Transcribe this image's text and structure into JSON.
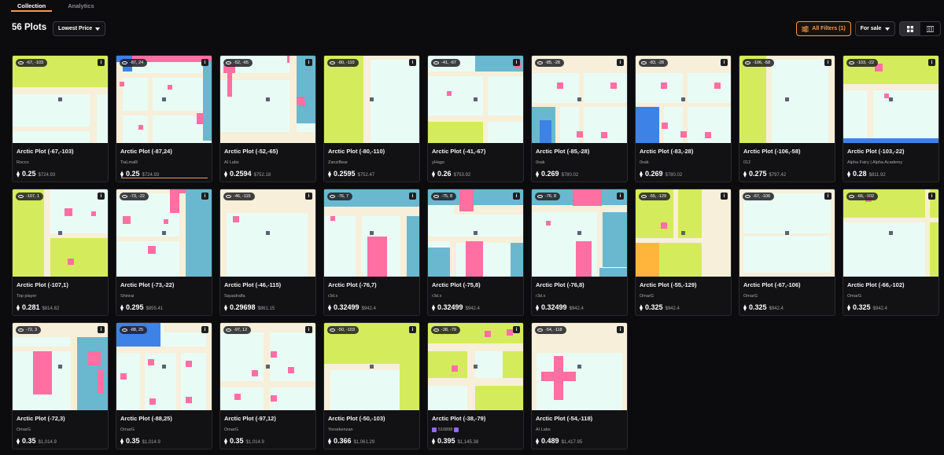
{
  "tabs": [
    {
      "label": "Collection"
    },
    {
      "label": "Analytics"
    }
  ],
  "toolbar": {
    "count": "56 Plots",
    "sort_label": "Lowest Price",
    "filters_label": "All Filters (1)",
    "forsale_label": "For sale"
  },
  "colors": {
    "accent": "#f59a4b",
    "park": "#d4ec5c",
    "road": "#f7efd9",
    "water": "#6ab8cf",
    "house": "#ff6fa2",
    "plaza": "#e8fcf5",
    "blue": "#3d82e6",
    "orange": "#ffb53c"
  },
  "plots": [
    {
      "coord": "-67, -103",
      "name": "Arctic Plot (-67,-103)",
      "owner": "Rocco",
      "price": "0.25",
      "usd": "$724.93"
    },
    {
      "coord": "-87, 24",
      "name": "Arctic Plot (-87,24)",
      "owner": "TiaLmaR",
      "price": "0.25",
      "usd": "$724.93"
    },
    {
      "coord": "-52, -65",
      "name": "Arctic Plot (-52,-65)",
      "owner": "AI Labs",
      "price": "0.2594",
      "usd": "$752.18"
    },
    {
      "coord": "-80, -110",
      "name": "Arctic Plot (-80,-110)",
      "owner": "ZanziBear",
      "price": "0.2595",
      "usd": "$752.47"
    },
    {
      "coord": "-41, -67",
      "name": "Arctic Plot (-41,-67)",
      "owner": "yHago",
      "price": "0.26",
      "usd": "$753.92"
    },
    {
      "coord": "-85, -28",
      "name": "Arctic Plot (-85,-28)",
      "owner": "0xak",
      "price": "0.269",
      "usd": "$780.02"
    },
    {
      "coord": "-83, -28",
      "name": "Arctic Plot (-83,-28)",
      "owner": "0xak",
      "price": "0.269",
      "usd": "$780.02"
    },
    {
      "coord": "-106, -58",
      "name": "Arctic Plot (-106,-58)",
      "owner": "012",
      "price": "0.275",
      "usd": "$797.42"
    },
    {
      "coord": "-103, -22",
      "name": "Arctic Plot (-103,-22)",
      "owner": "Alpha Fairy | Alpha Academy",
      "price": "0.28",
      "usd": "$811.92"
    },
    {
      "coord": "-107, 1",
      "name": "Arctic Plot (-107,1)",
      "owner": "Top player",
      "price": "0.281",
      "usd": "$814.82"
    },
    {
      "coord": "-73, -22",
      "name": "Arctic Plot (-73,-22)",
      "owner": "Shinrai",
      "price": "0.295",
      "usd": "$855.41"
    },
    {
      "coord": "-46, -115",
      "name": "Arctic Plot (-46,-115)",
      "owner": "Squadralfa",
      "price": "0.29698",
      "usd": "$861.15"
    },
    {
      "coord": "-76, 7",
      "name": "Arctic Plot (-76,7)",
      "owner": "r3d.x",
      "price": "0.32499",
      "usd": "$942.4"
    },
    {
      "coord": "-75, 8",
      "name": "Arctic Plot (-75,8)",
      "owner": "r3d.x",
      "price": "0.32499",
      "usd": "$942.4"
    },
    {
      "coord": "-76, 8",
      "name": "Arctic Plot (-76,8)",
      "owner": "r3d.x",
      "price": "0.32499",
      "usd": "$942.4"
    },
    {
      "coord": "-55, -129",
      "name": "Arctic Plot (-55,-129)",
      "owner": "OmarG",
      "price": "0.325",
      "usd": "$942.4"
    },
    {
      "coord": "-67, -106",
      "name": "Arctic Plot (-67,-106)",
      "owner": "OmarG",
      "price": "0.325",
      "usd": "$942.4"
    },
    {
      "coord": "-66, -102",
      "name": "Arctic Plot (-66,-102)",
      "owner": "OmarG",
      "price": "0.325",
      "usd": "$942.4"
    },
    {
      "coord": "-72, 3",
      "name": "Arctic Plot (-72,3)",
      "owner": "OmarG",
      "price": "0.35",
      "usd": "$1,014.9"
    },
    {
      "coord": "-88, 25",
      "name": "Arctic Plot (-88,25)",
      "owner": "OmarG",
      "price": "0.35",
      "usd": "$1,014.9"
    },
    {
      "coord": "-97, 12",
      "name": "Arctic Plot (-97,12)",
      "owner": "OmarG",
      "price": "0.35",
      "usd": "$1,014.9"
    },
    {
      "coord": "-50, -103",
      "name": "Arctic Plot (-50,-103)",
      "owner": "Yorsekenzan",
      "price": "0.366",
      "usd": "$1,061.29"
    },
    {
      "coord": "-38, -79",
      "name": "Arctic Plot (-38,-79)",
      "owner": "516898",
      "owner_badge": true,
      "price": "0.395",
      "usd": "$1,145.38"
    },
    {
      "coord": "-54, -118",
      "name": "Arctic Plot (-54,-118)",
      "owner": "AI Labs",
      "price": "0.489",
      "usd": "$1,417.95"
    }
  ]
}
